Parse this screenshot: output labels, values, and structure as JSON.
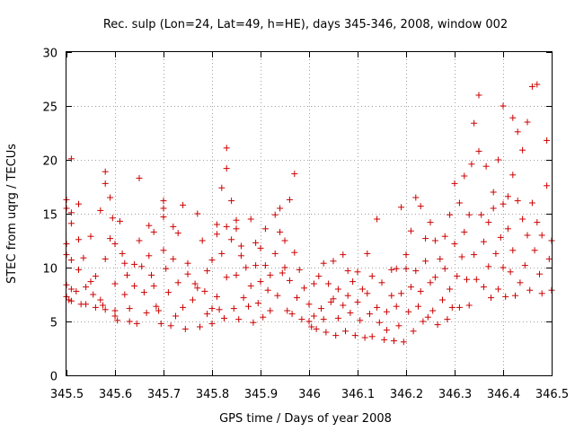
{
  "chart_data": {
    "type": "scatter",
    "title": "Rec. sulp (Lon=24, Lat=49, h=HE), days 345-346, 2008, window 002",
    "xlabel": "GPS time / Days of year 2008",
    "ylabel": "STEC from uqrg / TECUs",
    "xlim": [
      345.5,
      346.5
    ],
    "ylim": [
      0,
      30
    ],
    "x_ticks": [
      "345.5",
      "345.6",
      "345.7",
      "345.8",
      "345.9",
      "346",
      "346.1",
      "346.2",
      "346.3",
      "346.4",
      "346.5"
    ],
    "y_ticks": [
      "0",
      "5",
      "10",
      "15",
      "20",
      "25",
      "30"
    ],
    "grid": true,
    "marker": "plus",
    "color": "#cc0000",
    "series": [
      {
        "points": [
          [
            345.5,
            16.3
          ],
          [
            345.5,
            15.5
          ],
          [
            345.5,
            12.2
          ],
          [
            345.5,
            11.2
          ],
          [
            345.5,
            8.4
          ],
          [
            345.5,
            7.3
          ],
          [
            345.505,
            7.0
          ],
          [
            345.51,
            20.1
          ],
          [
            345.51,
            15.1
          ],
          [
            345.51,
            14.1
          ],
          [
            345.51,
            10.7
          ],
          [
            345.51,
            8.0
          ],
          [
            345.51,
            6.9
          ],
          [
            345.52,
            7.8
          ],
          [
            345.525,
            15.9
          ],
          [
            345.525,
            12.6
          ],
          [
            345.525,
            9.8
          ],
          [
            345.53,
            6.6
          ],
          [
            345.535,
            10.9
          ],
          [
            345.54,
            8.2
          ],
          [
            345.54,
            6.6
          ],
          [
            345.55,
            12.9
          ],
          [
            345.55,
            8.7
          ],
          [
            345.555,
            7.5
          ],
          [
            345.56,
            9.2
          ],
          [
            345.56,
            6.3
          ],
          [
            345.57,
            15.3
          ],
          [
            345.57,
            7.0
          ],
          [
            345.575,
            6.5
          ],
          [
            345.58,
            18.9
          ],
          [
            345.58,
            17.8
          ],
          [
            345.58,
            10.8
          ],
          [
            345.58,
            6.1
          ],
          [
            345.59,
            16.5
          ],
          [
            345.59,
            12.7
          ],
          [
            345.595,
            14.6
          ],
          [
            345.6,
            12.2
          ],
          [
            345.6,
            8.5
          ],
          [
            345.6,
            6.0
          ],
          [
            345.6,
            5.5
          ],
          [
            345.605,
            5.1
          ],
          [
            345.61,
            14.3
          ],
          [
            345.615,
            11.3
          ],
          [
            345.62,
            10.4
          ],
          [
            345.62,
            7.5
          ],
          [
            345.625,
            9.3
          ],
          [
            345.63,
            6.2
          ],
          [
            345.63,
            5.0
          ],
          [
            345.64,
            10.3
          ],
          [
            345.64,
            8.3
          ],
          [
            345.645,
            4.8
          ],
          [
            345.65,
            18.3
          ],
          [
            345.65,
            12.5
          ],
          [
            345.655,
            10.1
          ],
          [
            345.66,
            7.7
          ],
          [
            345.665,
            5.8
          ],
          [
            345.67,
            13.9
          ],
          [
            345.67,
            11.1
          ],
          [
            345.675,
            9.3
          ],
          [
            345.68,
            13.3
          ],
          [
            345.68,
            8.3
          ],
          [
            345.685,
            6.4
          ],
          [
            345.69,
            6.0
          ],
          [
            345.695,
            4.8
          ],
          [
            345.7,
            16.2
          ],
          [
            345.7,
            15.5
          ],
          [
            345.7,
            14.7
          ],
          [
            345.7,
            11.6
          ],
          [
            345.705,
            9.9
          ],
          [
            345.71,
            7.7
          ],
          [
            345.715,
            4.6
          ],
          [
            345.72,
            13.8
          ],
          [
            345.72,
            10.8
          ],
          [
            345.725,
            5.5
          ],
          [
            345.73,
            13.2
          ],
          [
            345.73,
            8.6
          ],
          [
            345.74,
            15.8
          ],
          [
            345.74,
            6.3
          ],
          [
            345.745,
            4.3
          ],
          [
            345.75,
            10.4
          ],
          [
            345.75,
            9.4
          ],
          [
            345.76,
            7.0
          ],
          [
            345.765,
            8.5
          ],
          [
            345.77,
            15.0
          ],
          [
            345.77,
            8.1
          ],
          [
            345.775,
            4.5
          ],
          [
            345.78,
            12.5
          ],
          [
            345.785,
            7.8
          ],
          [
            345.79,
            9.7
          ],
          [
            345.79,
            5.7
          ],
          [
            345.8,
            10.7
          ],
          [
            345.8,
            6.2
          ],
          [
            345.8,
            4.8
          ],
          [
            345.81,
            14.0
          ],
          [
            345.81,
            13.1
          ],
          [
            345.81,
            7.3
          ],
          [
            345.815,
            6.1
          ],
          [
            345.82,
            17.4
          ],
          [
            345.82,
            11.3
          ],
          [
            345.825,
            5.3
          ],
          [
            345.83,
            21.1
          ],
          [
            345.83,
            19.2
          ],
          [
            345.83,
            13.8
          ],
          [
            345.83,
            9.1
          ],
          [
            345.84,
            16.2
          ],
          [
            345.84,
            12.6
          ],
          [
            345.845,
            6.2
          ],
          [
            345.85,
            14.4
          ],
          [
            345.85,
            13.6
          ],
          [
            345.85,
            9.3
          ],
          [
            345.855,
            5.2
          ],
          [
            345.86,
            12.0
          ],
          [
            345.86,
            11.1
          ],
          [
            345.865,
            7.2
          ],
          [
            345.87,
            10.0
          ],
          [
            345.875,
            6.4
          ],
          [
            345.88,
            14.5
          ],
          [
            345.88,
            8.3
          ],
          [
            345.885,
            4.9
          ],
          [
            345.89,
            12.3
          ],
          [
            345.89,
            10.2
          ],
          [
            345.895,
            6.7
          ],
          [
            345.9,
            11.8
          ],
          [
            345.9,
            8.7
          ],
          [
            345.905,
            5.4
          ],
          [
            345.91,
            13.6
          ],
          [
            345.91,
            10.2
          ],
          [
            345.915,
            7.9
          ],
          [
            345.92,
            9.3
          ],
          [
            345.92,
            6.0
          ],
          [
            345.93,
            14.9
          ],
          [
            345.93,
            11.3
          ],
          [
            345.935,
            7.4
          ],
          [
            345.94,
            15.5
          ],
          [
            345.94,
            13.3
          ],
          [
            345.945,
            9.5
          ],
          [
            345.95,
            12.5
          ],
          [
            345.95,
            10.0
          ],
          [
            345.955,
            6.0
          ],
          [
            345.96,
            16.3
          ],
          [
            345.96,
            8.8
          ],
          [
            345.965,
            5.7
          ],
          [
            345.97,
            18.7
          ],
          [
            345.97,
            11.4
          ],
          [
            345.975,
            7.2
          ],
          [
            345.98,
            9.8
          ],
          [
            345.985,
            5.2
          ],
          [
            345.99,
            8.1
          ],
          [
            346.0,
            6.6
          ],
          [
            346.0,
            5.0
          ],
          [
            346.005,
            4.5
          ],
          [
            346.01,
            8.5
          ],
          [
            346.01,
            5.5
          ],
          [
            346.015,
            4.3
          ],
          [
            346.02,
            9.2
          ],
          [
            346.025,
            6.2
          ],
          [
            346.03,
            10.4
          ],
          [
            346.03,
            5.2
          ],
          [
            346.035,
            4.0
          ],
          [
            346.04,
            8.5
          ],
          [
            346.045,
            6.8
          ],
          [
            346.05,
            10.6
          ],
          [
            346.05,
            7.1
          ],
          [
            346.055,
            3.7
          ],
          [
            346.06,
            8.0
          ],
          [
            346.06,
            5.3
          ],
          [
            346.07,
            11.2
          ],
          [
            346.07,
            6.5
          ],
          [
            346.075,
            4.1
          ],
          [
            346.08,
            9.7
          ],
          [
            346.08,
            7.4
          ],
          [
            346.085,
            5.8
          ],
          [
            346.09,
            8.7
          ],
          [
            346.095,
            3.7
          ],
          [
            346.1,
            9.6
          ],
          [
            346.1,
            6.8
          ],
          [
            346.105,
            5.1
          ],
          [
            346.11,
            8.0
          ],
          [
            346.115,
            3.5
          ],
          [
            346.12,
            11.3
          ],
          [
            346.12,
            7.6
          ],
          [
            346.125,
            5.7
          ],
          [
            346.13,
            9.2
          ],
          [
            346.13,
            3.6
          ],
          [
            346.14,
            14.5
          ],
          [
            346.14,
            6.3
          ],
          [
            346.145,
            4.9
          ],
          [
            346.15,
            8.6
          ],
          [
            346.155,
            3.3
          ],
          [
            346.16,
            5.9
          ],
          [
            346.16,
            4.2
          ],
          [
            346.17,
            9.8
          ],
          [
            346.17,
            7.4
          ],
          [
            346.175,
            3.2
          ],
          [
            346.18,
            9.9
          ],
          [
            346.18,
            6.4
          ],
          [
            346.185,
            4.6
          ],
          [
            346.19,
            15.6
          ],
          [
            346.19,
            7.6
          ],
          [
            346.195,
            3.1
          ],
          [
            346.2,
            11.2
          ],
          [
            346.2,
            9.9
          ],
          [
            346.205,
            5.9
          ],
          [
            346.21,
            13.4
          ],
          [
            346.21,
            8.2
          ],
          [
            346.215,
            4.1
          ],
          [
            346.22,
            16.5
          ],
          [
            346.22,
            9.7
          ],
          [
            346.225,
            6.4
          ],
          [
            346.23,
            15.7
          ],
          [
            346.23,
            7.8
          ],
          [
            346.235,
            5.0
          ],
          [
            346.24,
            12.7
          ],
          [
            346.24,
            10.6
          ],
          [
            346.245,
            5.4
          ],
          [
            346.25,
            14.2
          ],
          [
            346.25,
            8.6
          ],
          [
            346.255,
            6.0
          ],
          [
            346.26,
            12.5
          ],
          [
            346.26,
            9.1
          ],
          [
            346.265,
            4.7
          ],
          [
            346.27,
            10.8
          ],
          [
            346.275,
            7.0
          ],
          [
            346.28,
            12.9
          ],
          [
            346.28,
            9.9
          ],
          [
            346.285,
            5.2
          ],
          [
            346.29,
            14.9
          ],
          [
            346.29,
            8.0
          ],
          [
            346.295,
            6.3
          ],
          [
            346.3,
            17.8
          ],
          [
            346.3,
            12.2
          ],
          [
            346.305,
            9.2
          ],
          [
            346.31,
            16.0
          ],
          [
            346.31,
            6.3
          ],
          [
            346.315,
            11.0
          ],
          [
            346.32,
            18.5
          ],
          [
            346.32,
            13.3
          ],
          [
            346.325,
            8.9
          ],
          [
            346.33,
            14.9
          ],
          [
            346.33,
            6.5
          ],
          [
            346.335,
            19.6
          ],
          [
            346.34,
            23.4
          ],
          [
            346.34,
            11.2
          ],
          [
            346.345,
            8.9
          ],
          [
            346.35,
            26.0
          ],
          [
            346.35,
            20.8
          ],
          [
            346.355,
            14.9
          ],
          [
            346.36,
            12.4
          ],
          [
            346.36,
            8.2
          ],
          [
            346.365,
            19.4
          ],
          [
            346.37,
            14.2
          ],
          [
            346.37,
            10.1
          ],
          [
            346.375,
            7.2
          ],
          [
            346.38,
            17.0
          ],
          [
            346.38,
            15.5
          ],
          [
            346.385,
            11.3
          ],
          [
            346.39,
            20.0
          ],
          [
            346.39,
            8.0
          ],
          [
            346.395,
            12.8
          ],
          [
            346.4,
            25.0
          ],
          [
            346.4,
            15.9
          ],
          [
            346.4,
            10.0
          ],
          [
            346.405,
            7.3
          ],
          [
            346.41,
            16.6
          ],
          [
            346.41,
            13.6
          ],
          [
            346.415,
            9.6
          ],
          [
            346.42,
            23.9
          ],
          [
            346.42,
            18.6
          ],
          [
            346.42,
            11.6
          ],
          [
            346.425,
            7.4
          ],
          [
            346.43,
            22.6
          ],
          [
            346.43,
            16.2
          ],
          [
            346.435,
            8.6
          ],
          [
            346.44,
            20.9
          ],
          [
            346.44,
            14.5
          ],
          [
            346.445,
            10.2
          ],
          [
            346.45,
            23.5
          ],
          [
            346.45,
            13.0
          ],
          [
            346.455,
            7.9
          ],
          [
            346.46,
            26.8
          ],
          [
            346.46,
            16.0
          ],
          [
            346.465,
            11.6
          ],
          [
            346.47,
            27.0
          ],
          [
            346.47,
            14.2
          ],
          [
            346.475,
            9.4
          ],
          [
            346.48,
            13.0
          ],
          [
            346.48,
            7.6
          ],
          [
            346.49,
            21.8
          ],
          [
            346.49,
            17.6
          ],
          [
            346.495,
            10.8
          ],
          [
            346.5,
            12.5
          ],
          [
            346.5,
            7.9
          ]
        ]
      }
    ]
  }
}
